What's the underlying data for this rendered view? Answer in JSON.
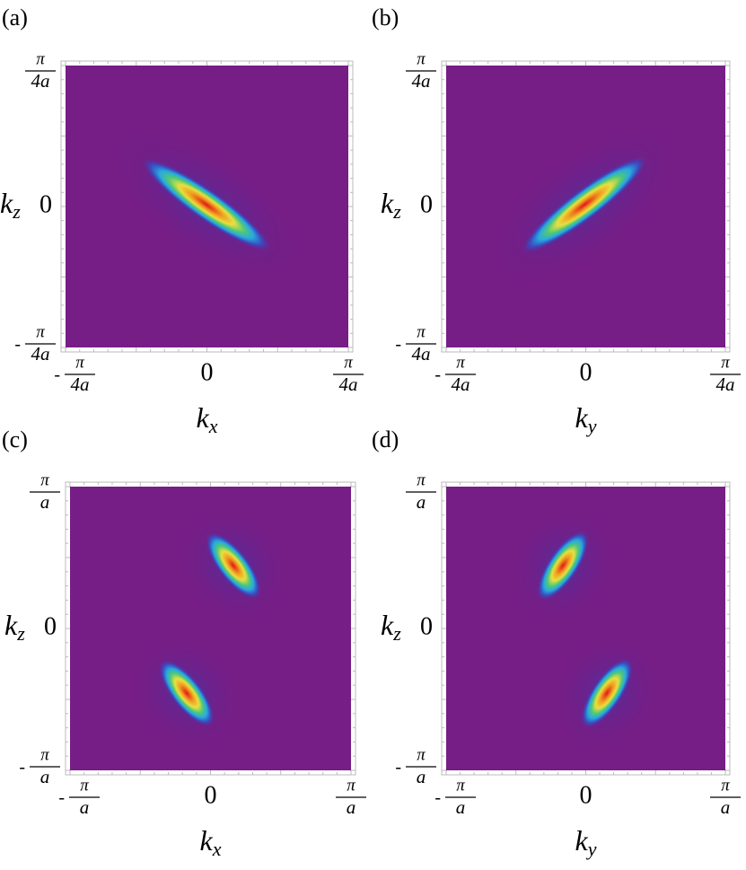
{
  "panels": [
    {
      "letter": "(a)",
      "xlabel": {
        "base": "k",
        "sub": "x"
      },
      "ylabel": {
        "base": "k",
        "sub": "z"
      },
      "xticks": [
        {
          "sign": "-",
          "num": "π",
          "den": "4a"
        },
        "0",
        {
          "num": "π",
          "den": "4a"
        }
      ],
      "yticks": [
        {
          "sign": "-",
          "num": "π",
          "den": "4a"
        },
        "0",
        {
          "num": "π",
          "den": "4a"
        }
      ]
    },
    {
      "letter": "(b)",
      "xlabel": {
        "base": "k",
        "sub": "y"
      },
      "ylabel": {
        "base": "k",
        "sub": "z"
      },
      "xticks": [
        {
          "sign": "-",
          "num": "π",
          "den": "4a"
        },
        "0",
        {
          "num": "π",
          "den": "4a"
        }
      ],
      "yticks": [
        {
          "sign": "-",
          "num": "π",
          "den": "4a"
        },
        "0",
        {
          "num": "π",
          "den": "4a"
        }
      ]
    },
    {
      "letter": "(c)",
      "xlabel": {
        "base": "k",
        "sub": "x"
      },
      "ylabel": {
        "base": "k",
        "sub": "z"
      },
      "xticks": [
        {
          "sign": "-",
          "num": "π",
          "den": "a"
        },
        "0",
        {
          "num": "π",
          "den": "a"
        }
      ],
      "yticks": [
        {
          "sign": "-",
          "num": "π",
          "den": "a"
        },
        "0",
        {
          "num": "π",
          "den": "a"
        }
      ]
    },
    {
      "letter": "(d)",
      "xlabel": {
        "base": "k",
        "sub": "y"
      },
      "ylabel": {
        "base": "k",
        "sub": "z"
      },
      "xticks": [
        {
          "sign": "-",
          "num": "π",
          "den": "a"
        },
        "0",
        {
          "num": "π",
          "den": "a"
        }
      ],
      "yticks": [
        {
          "sign": "-",
          "num": "π",
          "den": "a"
        },
        "0",
        {
          "num": "π",
          "den": "a"
        }
      ]
    }
  ]
}
